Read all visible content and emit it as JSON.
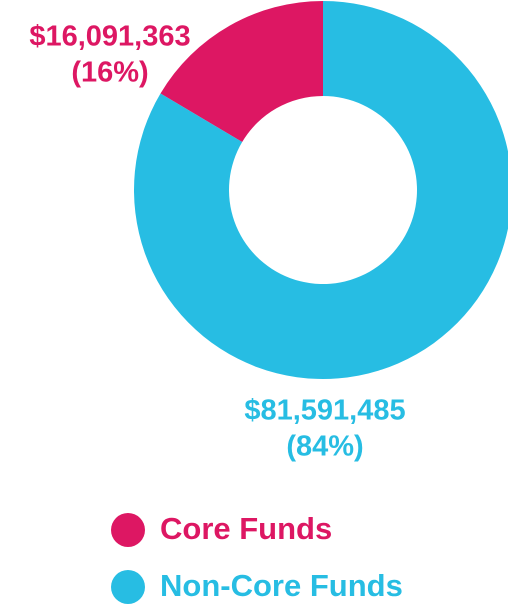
{
  "chart_data": {
    "type": "donut",
    "categories": [
      "Core Funds",
      "Non-Core Funds"
    ],
    "values": [
      16091363,
      81591485
    ],
    "value_labels": [
      "$16,091,363",
      "$81,591,485"
    ],
    "percents": [
      16,
      84
    ],
    "percent_labels": [
      "(16%)",
      "(84%)"
    ],
    "colors": [
      "#dd1763",
      "#27bde3"
    ],
    "legend": "bottom"
  }
}
